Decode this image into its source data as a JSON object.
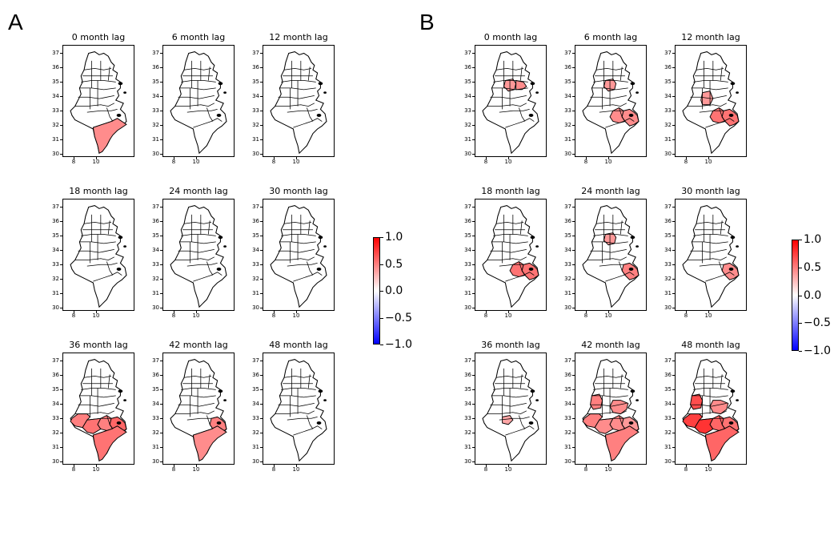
{
  "panels": [
    {
      "letter": "A",
      "maps": [
        {
          "title": "0 month lag",
          "highlights": [
            {
              "region": "tataouine",
              "value": 0.45
            }
          ]
        },
        {
          "title": "6 month lag",
          "highlights": []
        },
        {
          "title": "12 month lag",
          "highlights": []
        },
        {
          "title": "18 month lag",
          "highlights": []
        },
        {
          "title": "24 month lag",
          "highlights": []
        },
        {
          "title": "30 month lag",
          "highlights": []
        },
        {
          "title": "36 month lag",
          "highlights": [
            {
              "region": "tozeur",
              "value": 0.5
            },
            {
              "region": "kebili",
              "value": 0.55
            },
            {
              "region": "gabes",
              "value": 0.5
            },
            {
              "region": "medenine",
              "value": 0.6
            },
            {
              "region": "tataouine",
              "value": 0.55
            }
          ]
        },
        {
          "title": "42 month lag",
          "highlights": [
            {
              "region": "medenine",
              "value": 0.5
            },
            {
              "region": "tataouine",
              "value": 0.45
            }
          ]
        },
        {
          "title": "48 month lag",
          "highlights": []
        }
      ]
    },
    {
      "letter": "B",
      "maps": [
        {
          "title": "0 month lag",
          "highlights": [
            {
              "region": "kairouan",
              "value": 0.4
            },
            {
              "region": "sousse",
              "value": 0.45
            }
          ]
        },
        {
          "title": "6 month lag",
          "highlights": [
            {
              "region": "kairouan",
              "value": 0.4
            },
            {
              "region": "gabes",
              "value": 0.45
            },
            {
              "region": "medenine",
              "value": 0.45
            }
          ]
        },
        {
          "title": "12 month lag",
          "highlights": [
            {
              "region": "sidibouzid",
              "value": 0.4
            },
            {
              "region": "gabes",
              "value": 0.55
            },
            {
              "region": "medenine",
              "value": 0.55
            }
          ]
        },
        {
          "title": "18 month lag",
          "highlights": [
            {
              "region": "gabes",
              "value": 0.55
            },
            {
              "region": "medenine",
              "value": 0.55
            }
          ]
        },
        {
          "title": "24 month lag",
          "highlights": [
            {
              "region": "kairouan",
              "value": 0.4
            },
            {
              "region": "medenine",
              "value": 0.5
            }
          ]
        },
        {
          "title": "30 month lag",
          "highlights": [
            {
              "region": "medenine",
              "value": 0.45
            }
          ]
        },
        {
          "title": "36 month lag",
          "highlights": [
            {
              "region": "kebili_n",
              "value": 0.35
            }
          ]
        },
        {
          "title": "42 month lag",
          "highlights": [
            {
              "region": "kasserine",
              "value": 0.5
            },
            {
              "region": "sfax",
              "value": 0.45
            },
            {
              "region": "tozeur",
              "value": 0.5
            },
            {
              "region": "kebili",
              "value": 0.45
            },
            {
              "region": "gabes",
              "value": 0.45
            },
            {
              "region": "medenine",
              "value": 0.4
            },
            {
              "region": "tataouine",
              "value": 0.5
            }
          ]
        },
        {
          "title": "48 month lag",
          "highlights": [
            {
              "region": "kasserine",
              "value": 0.7
            },
            {
              "region": "sfax",
              "value": 0.45
            },
            {
              "region": "tozeur",
              "value": 0.75
            },
            {
              "region": "kebili",
              "value": 0.8
            },
            {
              "region": "gabes",
              "value": 0.6
            },
            {
              "region": "medenine",
              "value": 0.55
            },
            {
              "region": "tataouine",
              "value": 0.6
            }
          ]
        }
      ]
    }
  ],
  "axes": {
    "yticks": [
      "37",
      "36",
      "35",
      "34",
      "33",
      "32",
      "31",
      "30"
    ],
    "xticks": [
      "8",
      "10"
    ]
  },
  "colorbar": {
    "ticks": [
      "1.0",
      "0.5",
      "0.0",
      "−0.5",
      "−1.0"
    ],
    "range": [
      -1.0,
      1.0
    ],
    "colors": {
      "low": "#0000ff",
      "mid": "#ffffff",
      "high": "#ff0000"
    }
  }
}
